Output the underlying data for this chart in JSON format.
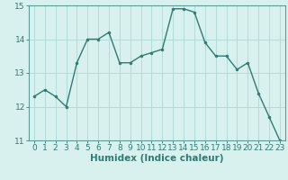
{
  "x": [
    0,
    1,
    2,
    3,
    4,
    5,
    6,
    7,
    8,
    9,
    10,
    11,
    12,
    13,
    14,
    15,
    16,
    17,
    18,
    19,
    20,
    21,
    22,
    23
  ],
  "y": [
    12.3,
    12.5,
    12.3,
    12.0,
    13.3,
    14.0,
    14.0,
    14.2,
    13.3,
    13.3,
    13.5,
    13.6,
    13.7,
    14.9,
    14.9,
    14.8,
    13.9,
    13.5,
    13.5,
    13.1,
    13.3,
    12.4,
    11.7,
    11.0
  ],
  "line_color": "#2e7d72",
  "marker_color": "#2e7d72",
  "bg_color": "#d8f0ee",
  "grid_color": "#b0dcd8",
  "xlabel": "Humidex (Indice chaleur)",
  "xlim": [
    -0.5,
    23.5
  ],
  "ylim": [
    11,
    15
  ],
  "yticks": [
    11,
    12,
    13,
    14,
    15
  ],
  "xticks": [
    0,
    1,
    2,
    3,
    4,
    5,
    6,
    7,
    8,
    9,
    10,
    11,
    12,
    13,
    14,
    15,
    16,
    17,
    18,
    19,
    20,
    21,
    22,
    23
  ],
  "tick_color": "#2e7d72",
  "label_color": "#2e7d72",
  "xlabel_fontsize": 7.5,
  "tick_fontsize": 6.5,
  "spine_color": "#5a9e96"
}
